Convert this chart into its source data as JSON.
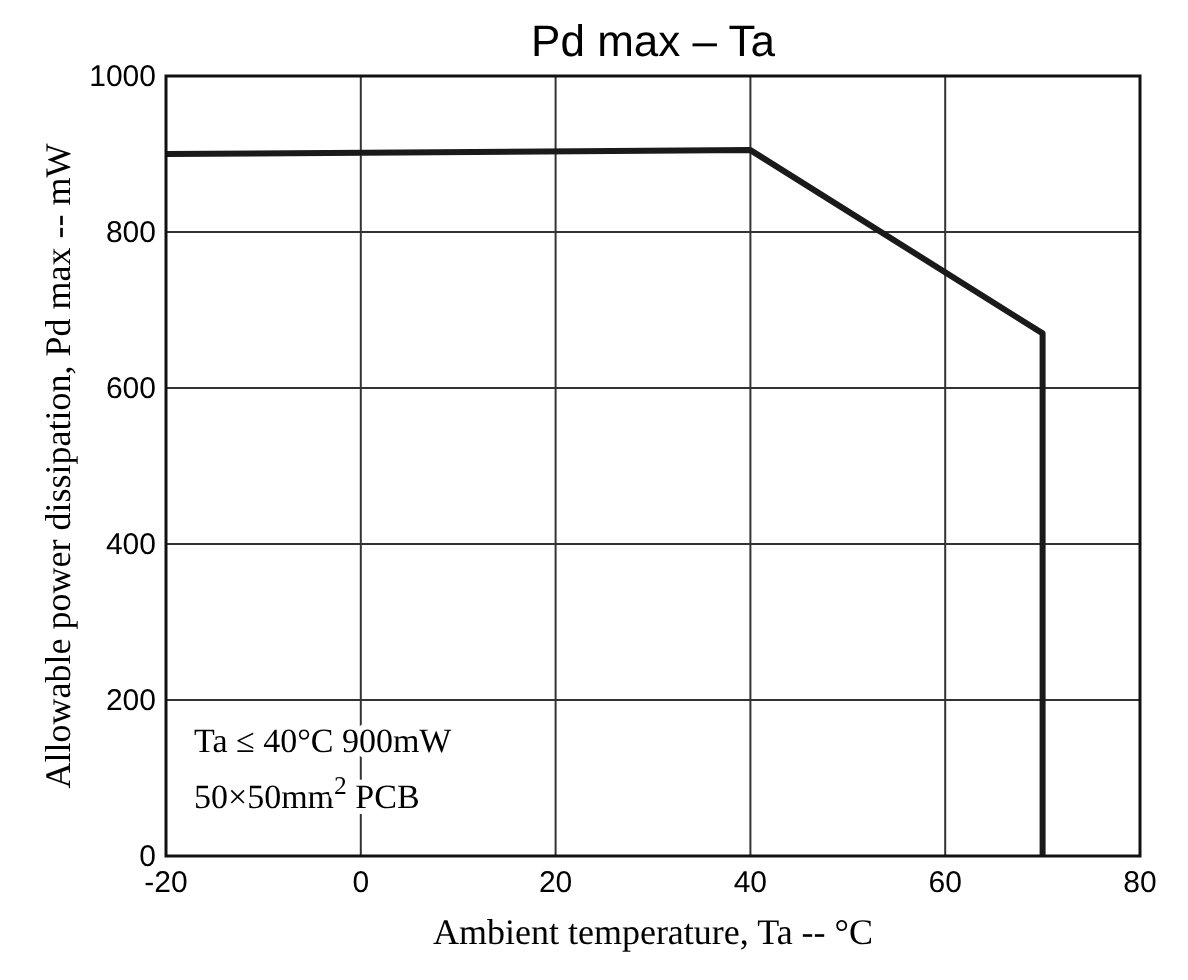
{
  "chart_data": {
    "type": "line",
    "title": "Pd max – Ta",
    "xlabel": "Ambient temperature, Ta -- °C",
    "ylabel": "Allowable power dissipation, Pd max -- mW",
    "x": [
      -20,
      40,
      70,
      70
    ],
    "series": [
      {
        "color": "#1a1a1a",
        "values": [
          900,
          905,
          670,
          0
        ]
      }
    ],
    "xlim": [
      -20,
      80
    ],
    "xticks": [
      -20,
      0,
      20,
      40,
      60,
      80
    ],
    "ylim": [
      0,
      1000
    ],
    "yticks": [
      0,
      200,
      400,
      600,
      800,
      1000
    ],
    "grid": true,
    "marker": "none",
    "line_style": "solid",
    "annotations": [
      "Ta ≤ 40°C 900mW",
      "50×50mm$^{2}$ PCB"
    ]
  }
}
